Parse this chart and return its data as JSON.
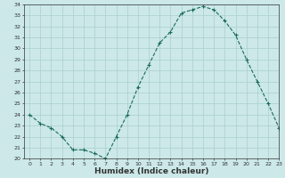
{
  "x": [
    0,
    1,
    2,
    3,
    4,
    5,
    6,
    7,
    8,
    9,
    10,
    11,
    12,
    13,
    14,
    15,
    16,
    17,
    18,
    19,
    20,
    21,
    22,
    23
  ],
  "y": [
    24.0,
    23.2,
    22.8,
    22.0,
    20.8,
    20.8,
    20.5,
    20.0,
    22.0,
    24.0,
    26.5,
    28.5,
    30.5,
    31.5,
    33.2,
    33.5,
    33.8,
    33.5,
    32.5,
    31.2,
    29.0,
    27.0,
    25.0,
    22.8
  ],
  "line_color": "#1a6b5a",
  "marker": "+",
  "marker_size": 3,
  "line_width": 0.8,
  "bg_color": "#cce8e8",
  "grid_color": "#aacfcf",
  "xlabel": "Humidex (Indice chaleur)",
  "ylabel": "",
  "ylim": [
    20,
    34
  ],
  "xlim": [
    -0.5,
    23
  ],
  "yticks": [
    20,
    21,
    22,
    23,
    24,
    25,
    26,
    27,
    28,
    29,
    30,
    31,
    32,
    33,
    34
  ],
  "xticks": [
    0,
    1,
    2,
    3,
    4,
    5,
    6,
    7,
    8,
    9,
    10,
    11,
    12,
    13,
    14,
    15,
    16,
    17,
    18,
    19,
    20,
    21,
    22,
    23
  ],
  "tick_label_size": 4.5,
  "axis_label_size": 6.5,
  "axis_color": "#333333",
  "marker_edge_width": 0.8
}
